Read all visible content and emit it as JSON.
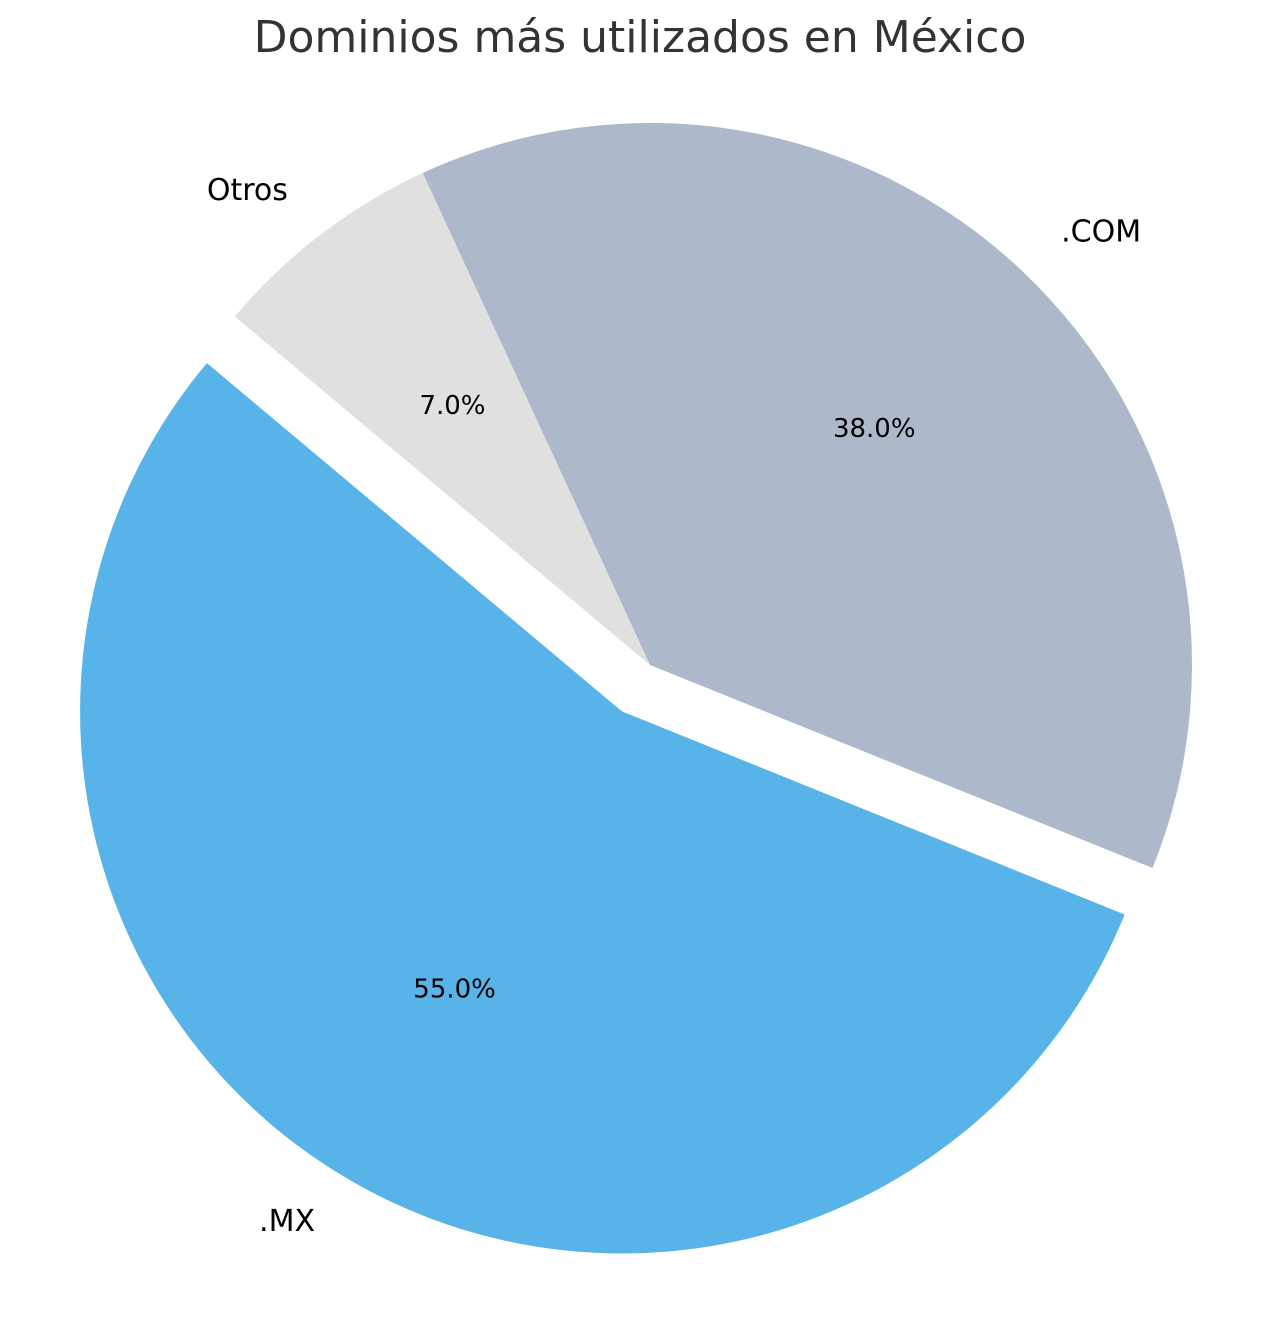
{
  "chart_data": {
    "type": "pie",
    "title": "Dominios más utilizados en México",
    "categories": [
      ".MX",
      ".COM",
      "Otros"
    ],
    "values": [
      55,
      38,
      7
    ],
    "value_labels": [
      "55.0%",
      "38.0%",
      "7.0%"
    ],
    "colors": [
      "#58b3e8",
      "#adb8ca",
      "#e0e0e0"
    ],
    "explode": [
      0.1,
      0,
      0
    ]
  }
}
